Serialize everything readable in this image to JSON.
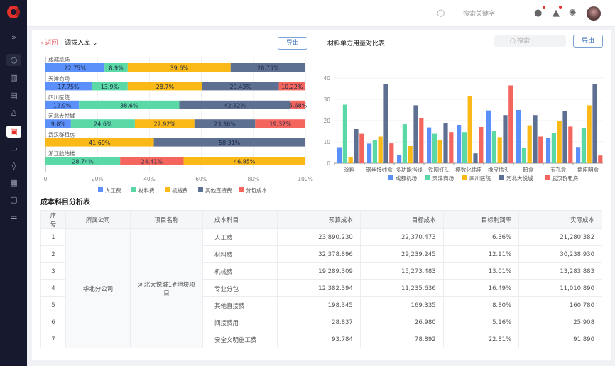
{
  "header": {
    "search_placeholder": "搜索关键字",
    "icons": [
      "search-icon",
      "message-icon",
      "bell-icon",
      "gear-icon",
      "avatar"
    ]
  },
  "sidebar": {
    "icons": [
      "expand-icon",
      "search-icon",
      "building-icon",
      "document-edit-icon",
      "stamp-icon",
      "clipboard-icon",
      "folder-icon",
      "droplet-icon",
      "report-icon",
      "window-icon",
      "sliders-icon"
    ],
    "active_index": 4
  },
  "left_panel": {
    "back_label": "返回",
    "title": "调拨入库",
    "export_label": "导出"
  },
  "right_panel": {
    "title": "材料单方用量对比表",
    "search_placeholder": "搜索",
    "export_label": "导出"
  },
  "chart_data": [
    {
      "type": "bar",
      "orientation": "horizontal",
      "stacked": true,
      "percent": true,
      "series_colors": {
        "人工费": "#5b8ff9",
        "材料费": "#5ad8a6",
        "机械费": "#fbb917",
        "其他直接费": "#5d7092",
        "分包成本": "#f4665d"
      },
      "legend": [
        "人工费",
        "材料费",
        "机械费",
        "其他直接费",
        "分包成本"
      ],
      "legend_position": "bottom",
      "xticks": [
        "0",
        "20%",
        "40%",
        "60%",
        "80%",
        "100%"
      ],
      "rows": [
        {
          "label": "成都机场",
          "segments": [
            {
              "series": "人工费",
              "value": 22.75,
              "text": "22.75%"
            },
            {
              "series": "材料费",
              "value": 8.9,
              "text": "8.9%"
            },
            {
              "series": "机械费",
              "value": 39.6,
              "text": "39.6%"
            },
            {
              "series": "其他直接费",
              "value": 28.75,
              "text": "28.75%"
            }
          ]
        },
        {
          "label": "天津商场",
          "segments": [
            {
              "series": "人工费",
              "value": 17.75,
              "text": "17.75%"
            },
            {
              "series": "材料费",
              "value": 13.9,
              "text": "13.9%"
            },
            {
              "series": "机械费",
              "value": 28.7,
              "text": "28.7%"
            },
            {
              "series": "其他直接费",
              "value": 29.43,
              "text": "29.43%"
            },
            {
              "series": "分包成本",
              "value": 10.22,
              "text": "10.22%"
            }
          ]
        },
        {
          "label": "四川医院",
          "segments": [
            {
              "series": "人工费",
              "value": 12.9,
              "text": "12.9%"
            },
            {
              "series": "材料费",
              "value": 38.6,
              "text": "38.6%"
            },
            {
              "series": "其他直接费",
              "value": 42.82,
              "text": "42.82%"
            },
            {
              "series": "分包成本",
              "value": 5.68,
              "text": "5.68%"
            }
          ]
        },
        {
          "label": "河北大悦城",
          "segments": [
            {
              "series": "人工费",
              "value": 9.8,
              "text": "9.8%"
            },
            {
              "series": "材料费",
              "value": 24.6,
              "text": "24.6%"
            },
            {
              "series": "机械费",
              "value": 22.92,
              "text": "22.92%"
            },
            {
              "series": "其他直接费",
              "value": 23.36,
              "text": "23.36%"
            },
            {
              "series": "分包成本",
              "value": 19.32,
              "text": "19.32%"
            }
          ]
        },
        {
          "label": "武汉群租房",
          "segments": [
            {
              "series": "机械费",
              "value": 41.69,
              "text": "41.69%"
            },
            {
              "series": "其他直接费",
              "value": 58.31,
              "text": "58.31%"
            }
          ]
        },
        {
          "label": "浙江航站楼",
          "segments": [
            {
              "series": "材料费",
              "value": 28.74,
              "text": "28.74%"
            },
            {
              "series": "分包成本",
              "value": 24.41,
              "text": "24.41%"
            },
            {
              "series": "机械费",
              "value": 46.85,
              "text": "46.85%"
            }
          ]
        }
      ]
    },
    {
      "type": "bar",
      "title": "材料单方用量对比表",
      "ylim": [
        0,
        40
      ],
      "yticks": [
        "0",
        "10",
        "20",
        "30",
        "40"
      ],
      "grid": true,
      "legend_position": "bottom",
      "categories": [
        "涂料",
        "钢丝接线盒",
        "多功能挡线",
        "铁网灯头",
        "模数化插座",
        "橡皮插头",
        "暗盒",
        "五孔盒",
        "插座明盒"
      ],
      "series": [
        {
          "name": "成都机场",
          "color": "#5b8ff9",
          "values": [
            7.5,
            9.2,
            3.8,
            16.8,
            18,
            24.8,
            25,
            11.8,
            7.6
          ]
        },
        {
          "name": "天津商场",
          "color": "#5ad8a6",
          "values": [
            27.5,
            11,
            18.3,
            13.8,
            14.6,
            15.3,
            7.2,
            14,
            16.4
          ]
        },
        {
          "name": "四川医院",
          "color": "#fbb917",
          "values": [
            2.8,
            12.5,
            8,
            11,
            31.5,
            12.2,
            17.8,
            20,
            27.2
          ]
        },
        {
          "name": "河北大悦城",
          "color": "#5d7092",
          "values": [
            16,
            37,
            27.2,
            19,
            4.6,
            22.6,
            22.6,
            24.6,
            37
          ]
        },
        {
          "name": "武汉群租房",
          "color": "#f4665d",
          "values": [
            13.8,
            9.3,
            21.3,
            14.6,
            17,
            36.5,
            12.5,
            17.2,
            3.6
          ]
        }
      ]
    }
  ],
  "table": {
    "title": "成本科目分析表",
    "columns": [
      "序号",
      "所属公司",
      "项目名称",
      "成本科目",
      "预算成本",
      "目标成本",
      "目标利润率",
      "实际成本"
    ],
    "company": "华北分公司",
    "project": "河北大悦城1#地块项目",
    "rows": [
      [
        "1",
        "人工费",
        "23,890.230",
        "22,370.473",
        "6.36%",
        "21,280.382"
      ],
      [
        "2",
        "材料费",
        "32,378.896",
        "29,239.245",
        "12.11%",
        "30,238.930"
      ],
      [
        "3",
        "机械费",
        "19,289.309",
        "15,273.483",
        "13.01%",
        "13,283.883"
      ],
      [
        "4",
        "专业分包",
        "12,382.394",
        "11,235.636",
        "16.49%",
        "11,010.890"
      ],
      [
        "5",
        "其他直接费",
        "198.345",
        "169.335",
        "8.80%",
        "160.780"
      ],
      [
        "6",
        "间接费用",
        "28.837",
        "26.980",
        "5.16%",
        "25.908"
      ],
      [
        "7",
        "安全文明施工费",
        "93.784",
        "78.892",
        "22.81%",
        "91.890"
      ]
    ]
  }
}
